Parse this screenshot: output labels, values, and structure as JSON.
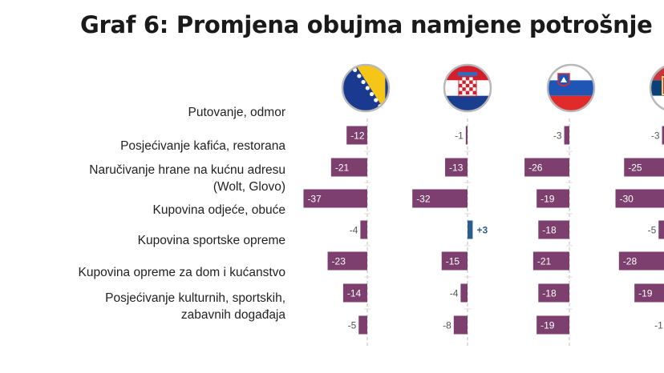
{
  "title": "Graf 6: Promjena obujma namjene potrošnje",
  "chart_data": {
    "type": "bar",
    "orientation": "horizontal",
    "title": "Graf 6: Promjena obujma namjene potrošnje",
    "categories_lines": [
      [
        "Putovanje, odmor"
      ],
      [
        "Posjećivanje kafića, restorana"
      ],
      [
        "Naručivanje hrane na kućnu adresu",
        "(Wolt, Glovo)"
      ],
      [
        "Kupovina odjeće, obuće"
      ],
      [
        "Kupovina sportske opreme"
      ],
      [
        "Kupovina opreme za dom i kućanstvo"
      ],
      [
        "Posjećivanje kulturnih, sportskih,",
        "zabavnih događaja"
      ]
    ],
    "series": [
      {
        "flag": "bosnia-herzegovina-flag-icon",
        "values": [
          -12,
          -21,
          -37,
          -4,
          -23,
          -14,
          -5
        ],
        "labels": [
          "-12",
          "-21",
          "-37",
          "-4",
          "-23",
          "-14",
          "-5"
        ]
      },
      {
        "flag": "croatia-flag-icon",
        "values": [
          -1,
          -13,
          -32,
          3,
          -15,
          -4,
          -8
        ],
        "labels": [
          "-1",
          "-13",
          "-32",
          "+3",
          "-15",
          "-4",
          "-8"
        ]
      },
      {
        "flag": "slovenia-flag-icon",
        "values": [
          -3,
          -26,
          -19,
          -18,
          -21,
          -18,
          -19
        ],
        "labels": [
          "-3",
          "-26",
          "-19",
          "-18",
          "-21",
          "-18",
          "-19"
        ]
      },
      {
        "flag": "serbia-flag-icon",
        "values": [
          -3,
          -25,
          -30,
          -5,
          -28,
          -19,
          -1
        ],
        "labels": [
          "-3",
          "-25",
          "-30",
          "-5",
          "-28",
          "-19",
          "-1"
        ]
      }
    ],
    "colors": {
      "negative": "#7d3f6d",
      "positive": "#2d5d8f",
      "axis": "#c8c8c8"
    }
  }
}
